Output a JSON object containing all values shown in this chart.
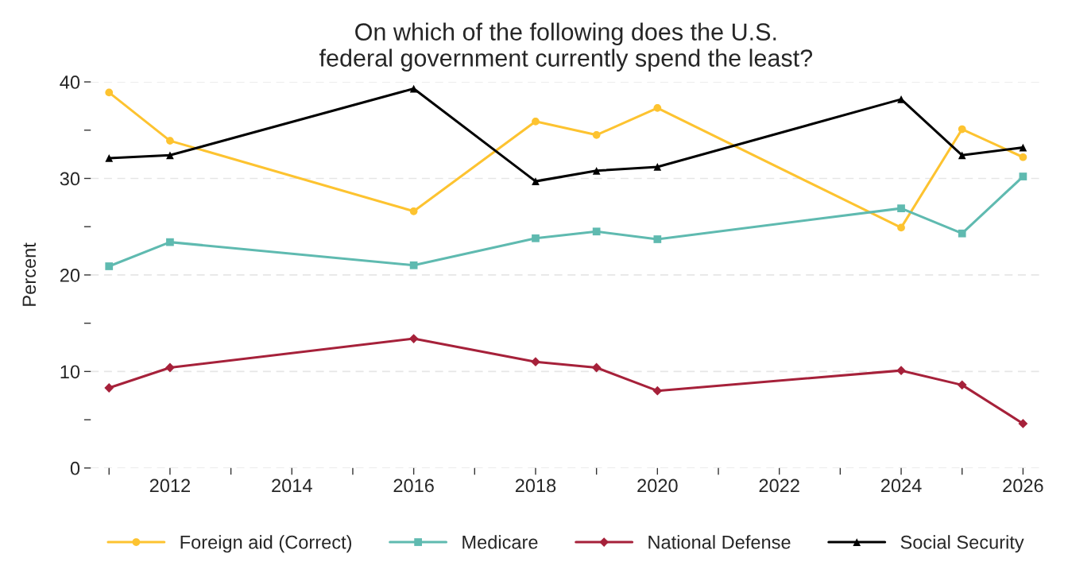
{
  "chart_data": {
    "type": "line",
    "title": "On which of the following does the U.S.\nfederal government currently spend the least?",
    "ylabel": "Percent",
    "x": [
      2011,
      2012,
      2016,
      2018,
      2019,
      2020,
      2024,
      2025,
      2026
    ],
    "series": [
      {
        "name": "Foreign aid (Correct)",
        "color": "#fdc330",
        "marker": "circle",
        "values": [
          38.9,
          33.9,
          26.6,
          35.9,
          34.5,
          37.3,
          24.9,
          35.1,
          32.2
        ]
      },
      {
        "name": "Medicare",
        "color": "#5fbab0",
        "marker": "square",
        "values": [
          20.9,
          23.4,
          21.0,
          23.8,
          24.5,
          23.7,
          26.9,
          24.3,
          30.2
        ]
      },
      {
        "name": "National Defense",
        "color": "#a6213a",
        "marker": "diamond",
        "values": [
          8.3,
          10.4,
          13.4,
          11.0,
          10.4,
          8.0,
          10.1,
          8.6,
          4.6
        ]
      },
      {
        "name": "Social Security",
        "color": "#000000",
        "marker": "triangle",
        "values": [
          32.1,
          32.4,
          39.3,
          29.7,
          30.8,
          31.2,
          38.2,
          32.4,
          33.2
        ]
      }
    ],
    "xlim": [
      2010.7,
      2026.3
    ],
    "xticks": [
      {
        "value": 2011,
        "label": null
      },
      2012,
      {
        "value": 2013,
        "label": null
      },
      2014,
      {
        "value": 2015,
        "label": null
      },
      2016,
      {
        "value": 2017,
        "label": null
      },
      2018,
      {
        "value": 2019,
        "label": null
      },
      2020,
      {
        "value": 2021,
        "label": null
      },
      2022,
      {
        "value": 2023,
        "label": null
      },
      2024,
      {
        "value": 2025,
        "label": null
      },
      2026
    ],
    "ylim": [
      0,
      40
    ],
    "yticks": [
      0,
      {
        "value": 5,
        "label": null
      },
      10,
      {
        "value": 15,
        "label": null
      },
      20,
      {
        "value": 25,
        "label": null
      },
      30,
      {
        "value": 35,
        "label": null
      },
      40
    ],
    "grid": "y",
    "legend": "bottom",
    "line_style": "solid"
  }
}
